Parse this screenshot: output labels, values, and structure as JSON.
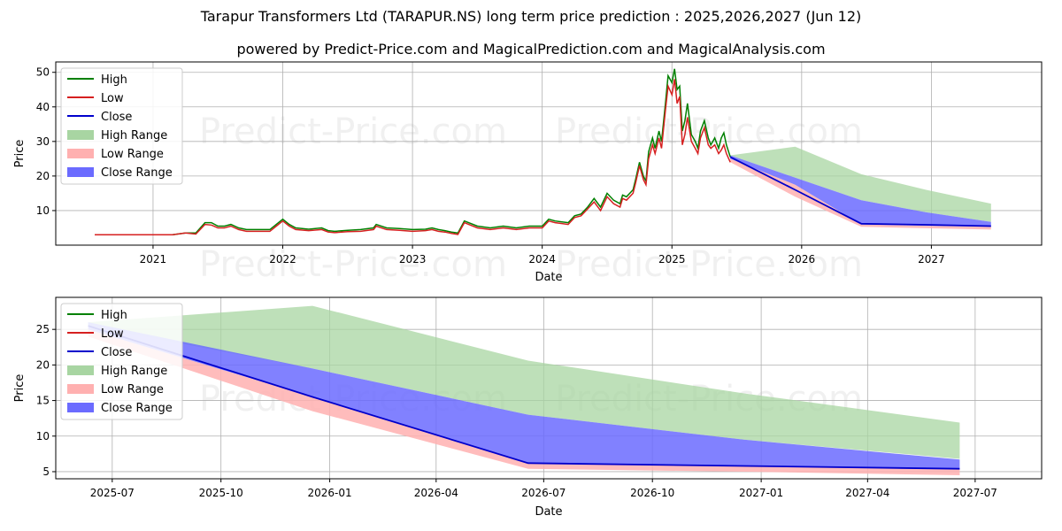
{
  "title": "Tarapur Transformers Ltd (TARAPUR.NS) long term price prediction : 2025,2026,2027 (Jun 12)",
  "subtitle": "powered by Predict-Price.com and MagicalPrediction.com and MagicalAnalysis.com",
  "watermark": "Predict-Price.com",
  "colors": {
    "high": "#008000",
    "low": "#d62020",
    "close": "#0000cc",
    "high_range": "#a8d5a2",
    "low_range": "#ffb0b0",
    "close_range": "#6b6bff",
    "grid": "#b0b0b0"
  },
  "legend": [
    "High",
    "Low",
    "Close",
    "High Range",
    "Low Range",
    "Close Range"
  ],
  "chart_data": [
    {
      "type": "line",
      "title": "Historical prices with long term prediction ranges",
      "xlabel": "Date",
      "ylabel": "Price",
      "legend_position": "top-left",
      "grid": true,
      "xlim": [
        2020.25,
        2027.85
      ],
      "ylim": [
        0,
        53
      ],
      "x_ticks": [
        2021,
        2022,
        2023,
        2024,
        2025,
        2026,
        2027
      ],
      "x_tick_labels": [
        "2021",
        "2022",
        "2023",
        "2024",
        "2025",
        "2026",
        "2027"
      ],
      "y_ticks": [
        10,
        20,
        30,
        40,
        50
      ],
      "y_tick_labels": [
        "10",
        "20",
        "30",
        "40",
        "50"
      ],
      "history": {
        "x": [
          2020.55,
          2020.9,
          2021.15,
          2021.25,
          2021.33,
          2021.4,
          2021.45,
          2021.5,
          2021.55,
          2021.6,
          2021.66,
          2021.72,
          2021.8,
          2021.9,
          2021.95,
          2022.0,
          2022.05,
          2022.1,
          2022.2,
          2022.3,
          2022.35,
          2022.4,
          2022.5,
          2022.6,
          2022.7,
          2022.72,
          2022.8,
          2022.9,
          2023.0,
          2023.1,
          2023.15,
          2023.2,
          2023.25,
          2023.3,
          2023.35,
          2023.4,
          2023.5,
          2023.6,
          2023.7,
          2023.8,
          2023.9,
          2024.0,
          2024.05,
          2024.1,
          2024.2,
          2024.25,
          2024.3,
          2024.35,
          2024.4,
          2024.45,
          2024.5,
          2024.55,
          2024.6,
          2024.62,
          2024.65,
          2024.7,
          2024.72,
          2024.75,
          2024.78,
          2024.8,
          2024.82,
          2024.85,
          2024.87,
          2024.9,
          2024.92,
          2024.95,
          2024.97,
          2025.0,
          2025.02,
          2025.04,
          2025.06,
          2025.08,
          2025.1,
          2025.12,
          2025.15,
          2025.18,
          2025.2,
          2025.22,
          2025.25,
          2025.28,
          2025.3,
          2025.33,
          2025.36,
          2025.38,
          2025.4,
          2025.42,
          2025.45
        ],
        "high": [
          3,
          3,
          3,
          3.5,
          3.5,
          6.5,
          6.5,
          5.5,
          5.5,
          6,
          5,
          4.5,
          4.5,
          4.5,
          6,
          7.5,
          6,
          5,
          4.6,
          5,
          4.2,
          4,
          4.3,
          4.5,
          5,
          6,
          5,
          4.8,
          4.5,
          4.6,
          5,
          4.5,
          4.2,
          3.8,
          3.5,
          7,
          5.5,
          5,
          5.5,
          5,
          5.5,
          5.5,
          7.5,
          7,
          6.5,
          8.5,
          9,
          11,
          13.5,
          11,
          15,
          13,
          12,
          14.5,
          14,
          16,
          19,
          24,
          20,
          18.5,
          27,
          31,
          28,
          33,
          30,
          41,
          49,
          47,
          51,
          45,
          46,
          33,
          36,
          41,
          32,
          30,
          28,
          33,
          36,
          31,
          29,
          31,
          28,
          31,
          32.5,
          29,
          25.5
        ],
        "low": [
          3,
          3,
          3,
          3.5,
          3.2,
          6,
          5.8,
          5,
          5,
          5.5,
          4.5,
          4,
          4,
          4,
          5.5,
          7,
          5.5,
          4.5,
          4.2,
          4.5,
          3.8,
          3.6,
          3.9,
          4,
          4.5,
          5.5,
          4.5,
          4.3,
          4,
          4.2,
          4.5,
          4,
          3.8,
          3.4,
          3.1,
          6.5,
          5,
          4.5,
          5,
          4.5,
          5,
          5,
          7,
          6.5,
          6,
          8,
          8.5,
          10.5,
          12.5,
          10,
          14,
          12,
          11,
          13.5,
          13,
          15,
          18,
          23,
          19,
          17.5,
          25,
          29,
          26.5,
          31,
          28,
          39,
          46,
          43.5,
          48,
          41,
          43,
          29,
          32,
          37,
          30,
          28,
          26.5,
          31,
          34,
          29,
          28,
          29,
          26.5,
          27.5,
          29,
          26.5,
          24
        ],
        "close": [
          3,
          3,
          3,
          3.5,
          3.3,
          6.2,
          6,
          5.2,
          5.2,
          5.8,
          4.7,
          4.2,
          4.2,
          4.2,
          5.8,
          7.2,
          5.7,
          4.7,
          4.4,
          4.7,
          4,
          3.8,
          4.1,
          4.2,
          4.7,
          5.7,
          4.7,
          4.5,
          4.2,
          4.4,
          4.7,
          4.2,
          4,
          3.6,
          3.3,
          6.7,
          5.2,
          4.7,
          5.2,
          4.7,
          5.2,
          5.2,
          7.2,
          6.7,
          6.2,
          8.2,
          8.7,
          10.7,
          13,
          10.5,
          14.5,
          12.5,
          11.5,
          14,
          13.5,
          15.5,
          18.5,
          23.5,
          19.5,
          18,
          26,
          30,
          27,
          32,
          29,
          40,
          47.5,
          45,
          49.5,
          43,
          44.5,
          31,
          34,
          39,
          31,
          29,
          27,
          32,
          35,
          30,
          28.5,
          30,
          27,
          29,
          30.5,
          27.5,
          25
        ]
      },
      "prediction": {
        "x": [
          2025.45,
          2025.95,
          2026.46,
          2026.96,
          2027.46
        ],
        "close_range_low": [
          25,
          17.5,
          6,
          5.6,
          5.3
        ],
        "close_range_high": [
          26,
          19.5,
          13,
          9.5,
          6.7
        ],
        "low_range_low": [
          24,
          14,
          5.3,
          4.9,
          4.5
        ],
        "high_range_high": [
          26,
          28.5,
          20.5,
          16,
          12
        ],
        "close": [
          25.5,
          16,
          6.2,
          5.9,
          5.5
        ]
      }
    },
    {
      "type": "line",
      "title": "Prediction detail",
      "xlabel": "Date",
      "ylabel": "Price",
      "legend_position": "top-left",
      "grid": true,
      "xlim": [
        2025.365,
        2027.65
      ],
      "ylim": [
        4,
        29.5
      ],
      "x_ticks": [
        2025.4959,
        2025.7479,
        2026.0,
        2026.2466,
        2026.4959,
        2026.7479,
        2027.0,
        2027.2466,
        2027.4959
      ],
      "x_tick_labels": [
        "2025-07",
        "2025-10",
        "2026-01",
        "2026-04",
        "2026-07",
        "2026-10",
        "2027-01",
        "2027-04",
        "2027-07"
      ],
      "y_ticks": [
        5,
        10,
        15,
        20,
        25
      ],
      "y_tick_labels": [
        "5",
        "10",
        "15",
        "20",
        "25"
      ],
      "prediction": {
        "x": [
          2025.44,
          2025.96,
          2026.46,
          2026.96,
          2027.46
        ],
        "high_range_low": [
          25.5,
          19.5,
          13,
          9.5,
          6.8
        ],
        "high_range_high": [
          26,
          28.3,
          20.6,
          16,
          11.9
        ],
        "close_range_low": [
          25,
          15.5,
          6.2,
          5.8,
          5.4
        ],
        "close_range_high": [
          26,
          19.5,
          13,
          9.5,
          6.7
        ],
        "low_range_low": [
          24,
          13.5,
          5.4,
          5,
          4.5
        ],
        "low_range_high": [
          25,
          15.5,
          6.2,
          5.8,
          5.4
        ],
        "close": [
          25.5,
          15.5,
          6.2,
          5.8,
          5.4
        ]
      }
    }
  ]
}
